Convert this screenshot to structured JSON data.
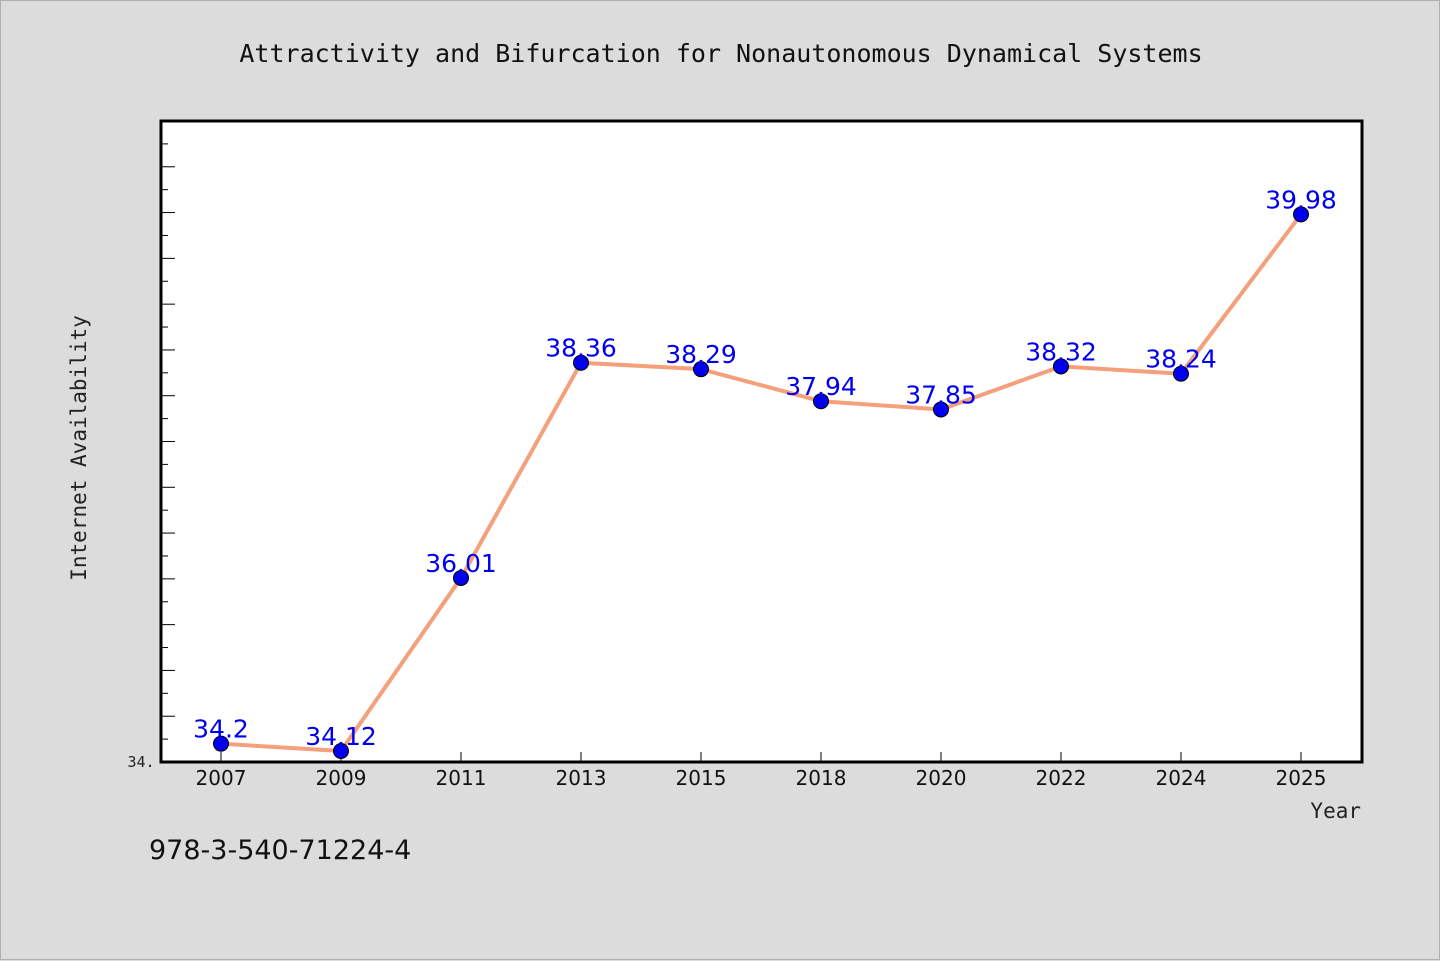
{
  "chart_data": {
    "type": "line",
    "title": "Attractivity and Bifurcation for Nonautonomous Dynamical Systems",
    "xlabel": "Year",
    "ylabel": "Internet Availability",
    "categories": [
      "2007",
      "2009",
      "2011",
      "2013",
      "2015",
      "2018",
      "2020",
      "2022",
      "2024",
      "2025"
    ],
    "series": [
      {
        "values": [
          34.2,
          34.12,
          36.01,
          38.36,
          38.29,
          37.94,
          37.85,
          38.32,
          38.24,
          39.98
        ],
        "labels": [
          "34.2",
          "34.12",
          "36.01",
          "38.36",
          "38.29",
          "37.94",
          "37.85",
          "38.32",
          "38.24",
          "39.98"
        ]
      }
    ],
    "ylim": [
      34.0,
      41.0
    ],
    "y_tick_label": "34.",
    "grid": false,
    "colors": {
      "line": "#f4a07c",
      "marker": "#0000ee",
      "label": "#0000ee",
      "plot_bg": "#ffffff",
      "figure_bg": "#dcdcdc"
    }
  },
  "footer": {
    "isbn": "978-3-540-71224-4"
  }
}
